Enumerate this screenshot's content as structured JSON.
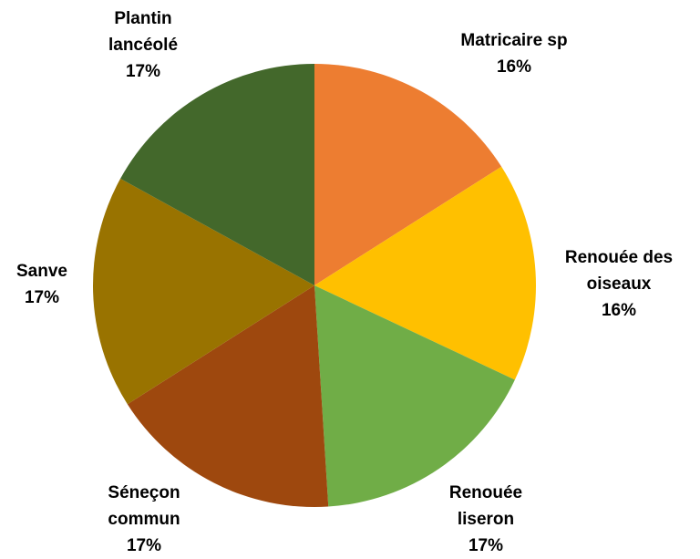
{
  "chart_data": {
    "type": "pie",
    "title": "",
    "start_angle_deg": 0,
    "direction": "clockwise",
    "legend": "none",
    "slices": [
      {
        "label_lines": [
          "Matricaire sp"
        ],
        "value_label": "16%",
        "value": 16,
        "color": "#ED7D31"
      },
      {
        "label_lines": [
          "Renouée des",
          "oiseaux"
        ],
        "value_label": "16%",
        "value": 16,
        "color": "#FFC000"
      },
      {
        "label_lines": [
          "Renouée",
          "liseron"
        ],
        "value_label": "17%",
        "value": 17,
        "color": "#70AD47"
      },
      {
        "label_lines": [
          "Séneçon",
          "commun"
        ],
        "value_label": "17%",
        "value": 17,
        "color": "#9E480E"
      },
      {
        "label_lines": [
          "Sanve"
        ],
        "value_label": "17%",
        "value": 17,
        "color": "#997300"
      },
      {
        "label_lines": [
          "Plantin",
          "lancéolé"
        ],
        "value_label": "17%",
        "value": 17,
        "color": "#43682B"
      }
    ]
  }
}
